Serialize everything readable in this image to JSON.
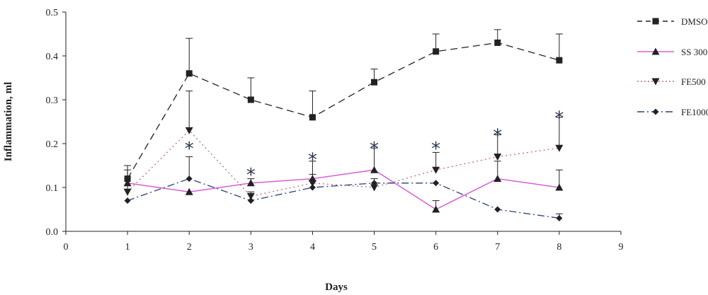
{
  "chart_data": {
    "type": "line",
    "title": "",
    "xlabel": "Days",
    "ylabel": "Inflammation, ml",
    "xlim": [
      0,
      9
    ],
    "ylim": [
      0,
      0.5
    ],
    "xticks": [
      0,
      1,
      2,
      3,
      4,
      5,
      6,
      7,
      8,
      9
    ],
    "yticks": [
      "0.0",
      "0.1",
      "0.2",
      "0.3",
      "0.4",
      "0.5"
    ],
    "grid": false,
    "legend_position": "right",
    "x": [
      1,
      2,
      3,
      4,
      5,
      6,
      7,
      8
    ],
    "series": [
      {
        "name": "DMSO",
        "color": "#222222",
        "dash": "dashed",
        "marker": "square",
        "values": [
          0.12,
          0.36,
          0.3,
          0.26,
          0.34,
          0.41,
          0.43,
          0.39
        ],
        "error": [
          0.03,
          0.08,
          0.05,
          0.06,
          0.03,
          0.04,
          0.03,
          0.06
        ]
      },
      {
        "name": "SS 300",
        "color": "#d65fd6",
        "dash": "solid",
        "marker": "triangle-up",
        "values": [
          0.11,
          0.09,
          0.11,
          0.12,
          0.14,
          0.05,
          0.12,
          0.1
        ],
        "error": [
          0.0,
          0.0,
          0.01,
          0.04,
          0.05,
          0.02,
          0.04,
          0.04
        ]
      },
      {
        "name": "FE500",
        "color": "#c0677a",
        "dash": "dotted",
        "marker": "triangle-down",
        "values": [
          0.09,
          0.23,
          0.08,
          0.11,
          0.1,
          0.14,
          0.17,
          0.19
        ],
        "error": [
          0.05,
          0.09,
          0.01,
          0.02,
          0.02,
          0.04,
          0.05,
          0.07
        ]
      },
      {
        "name": "FE1000",
        "color": "#2a3f7a",
        "dash": "dash-dot",
        "marker": "diamond",
        "values": [
          0.07,
          0.12,
          0.07,
          0.1,
          0.11,
          0.11,
          0.05,
          0.03
        ],
        "error": [
          0.0,
          0.05,
          0.0,
          0.0,
          0.0,
          0.0,
          0.0,
          0.01
        ]
      }
    ],
    "annotations": [
      {
        "text": "*",
        "x": 2,
        "y": 0.2
      },
      {
        "text": "*",
        "x": 3,
        "y": 0.14
      },
      {
        "text": "*",
        "x": 4,
        "y": 0.175
      },
      {
        "text": "*",
        "x": 5,
        "y": 0.2
      },
      {
        "text": "*",
        "x": 6,
        "y": 0.2
      },
      {
        "text": "*",
        "x": 7,
        "y": 0.23
      },
      {
        "text": "*",
        "x": 8,
        "y": 0.27
      }
    ]
  }
}
